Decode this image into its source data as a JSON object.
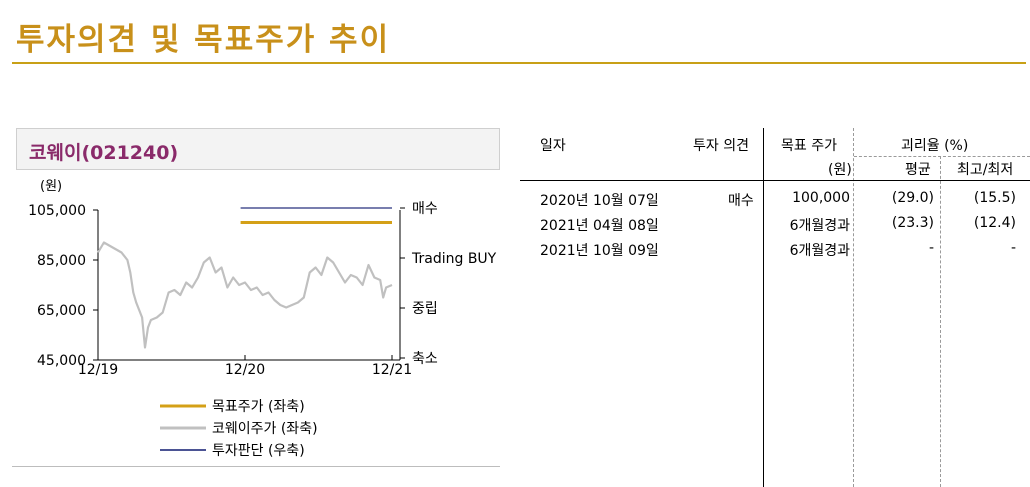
{
  "page_title": "투자의견 및 목표주가 추이",
  "chart_box_title": "코웨이(021240)",
  "table": {
    "headers": {
      "date": "일자",
      "opinion": "투자 의견",
      "target": "목표 주가",
      "target_unit": "(원)",
      "deviation": "괴리율 (%)",
      "average": "평균",
      "highlow": "최고/최저"
    },
    "rows": [
      {
        "date": "2020년 10월 07일",
        "opinion": "매수",
        "target": "100,000",
        "average": "(29.0)",
        "highlow": "(15.5)"
      },
      {
        "date": "2021년 04월 08일",
        "opinion": "",
        "target": "6개월경과",
        "average": "(23.3)",
        "highlow": "(12.4)"
      },
      {
        "date": "2021년 10월 09일",
        "opinion": "",
        "target": "6개월경과",
        "average": "-",
        "highlow": "-"
      }
    ]
  },
  "colors": {
    "title": "#C8901A",
    "target_line": "#D4A017",
    "price_line": "#C0C0C0",
    "opinion_line": "#4B5394"
  },
  "chart_data": {
    "type": "line",
    "title": "코웨이(021240)",
    "ylabel": "(원)",
    "ylim": [
      45000,
      105000
    ],
    "y_ticks": [
      "105,000",
      "85,000",
      "65,000",
      "45,000"
    ],
    "x_ticks": [
      "12/19",
      "12/20",
      "12/21"
    ],
    "right_ticks": [
      "매수",
      "Trading BUY",
      "중립",
      "축소"
    ],
    "legend": [
      "목표주가 (좌축)",
      "코웨이주가 (좌축)",
      "투자판단 (우축)"
    ],
    "series": [
      {
        "name": "목표주가 (좌축)",
        "x": [
          0.485,
          1.0
        ],
        "values": [
          100000,
          100000
        ]
      },
      {
        "name": "코웨이주가 (좌축)",
        "x": [
          0.0,
          0.02,
          0.05,
          0.08,
          0.1,
          0.11,
          0.12,
          0.13,
          0.15,
          0.16,
          0.17,
          0.18,
          0.2,
          0.22,
          0.24,
          0.26,
          0.28,
          0.3,
          0.32,
          0.34,
          0.36,
          0.38,
          0.4,
          0.42,
          0.44,
          0.46,
          0.48,
          0.5,
          0.52,
          0.54,
          0.56,
          0.58,
          0.6,
          0.62,
          0.64,
          0.66,
          0.68,
          0.7,
          0.72,
          0.74,
          0.76,
          0.78,
          0.8,
          0.82,
          0.84,
          0.86,
          0.88,
          0.9,
          0.92,
          0.94,
          0.96,
          0.97,
          0.98,
          1.0
        ],
        "values": [
          88000,
          92000,
          90000,
          88000,
          85000,
          80000,
          72000,
          68000,
          62000,
          50000,
          58000,
          61000,
          62000,
          64000,
          72000,
          73000,
          71000,
          76000,
          74000,
          78000,
          84000,
          86000,
          80000,
          82000,
          74000,
          78000,
          75000,
          76000,
          73000,
          74000,
          71000,
          72000,
          69000,
          67000,
          66000,
          67000,
          68000,
          70000,
          80000,
          82000,
          79000,
          86000,
          84000,
          80000,
          76000,
          79000,
          78000,
          75000,
          83000,
          78000,
          77000,
          70000,
          74000,
          75000
        ]
      },
      {
        "name": "투자판단 (우축)",
        "x": [
          0.485,
          1.0
        ],
        "values": [
          "매수",
          "매수"
        ]
      }
    ]
  }
}
